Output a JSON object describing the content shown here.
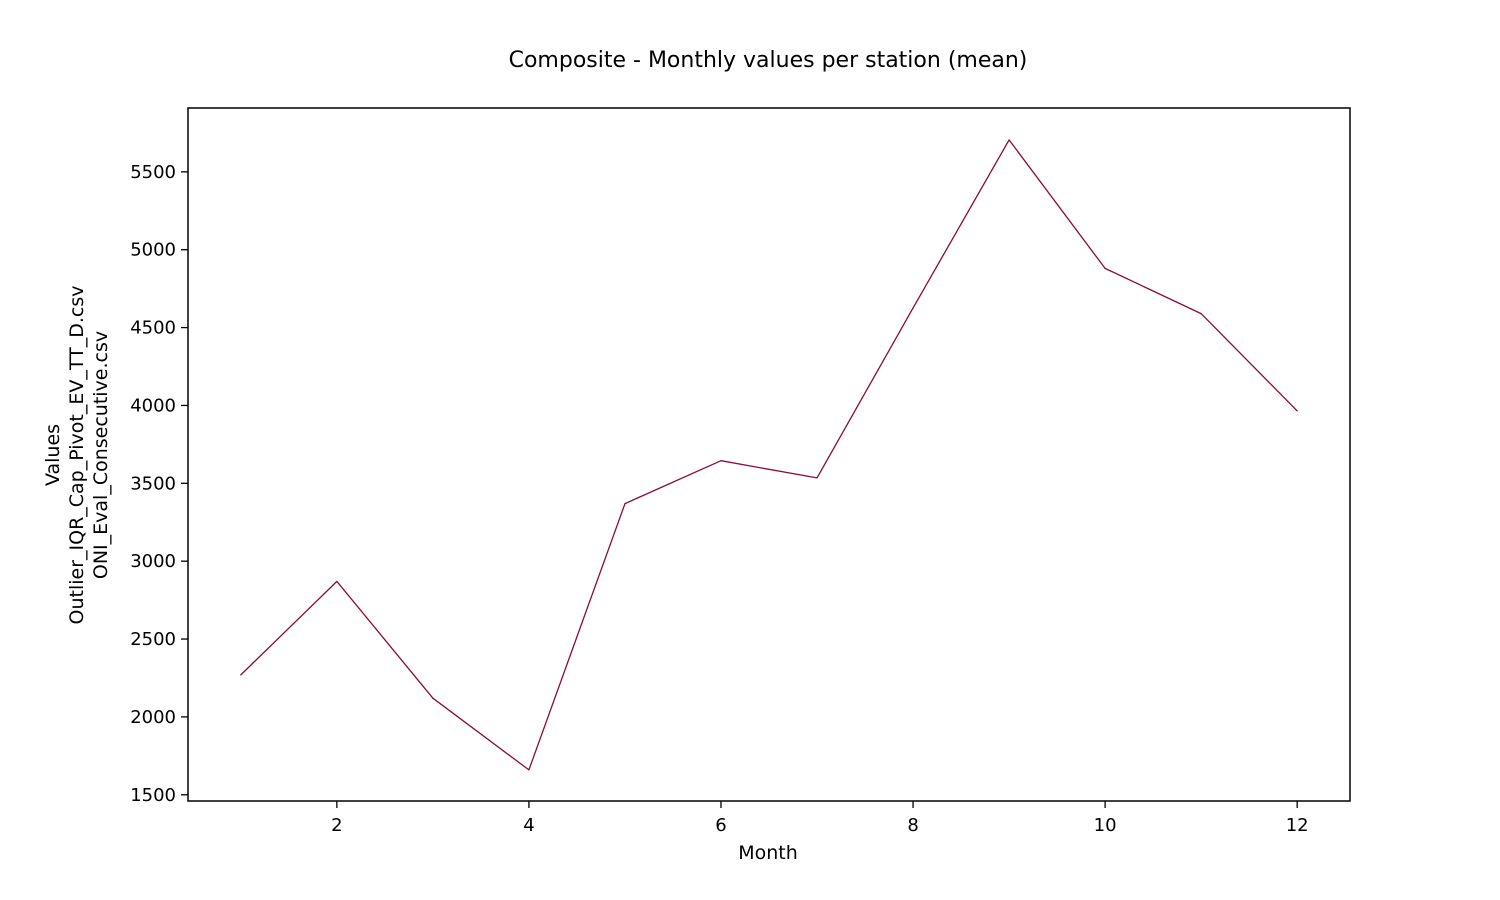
{
  "chart_data": {
    "type": "line",
    "title": "Composite - Monthly values per station (mean)",
    "xlabel": "Month",
    "ylabel_lines": [
      "Values",
      "Outlier_IQR_Cap_Pivot_EV_TT_D.csv",
      "ONI_Eval_Consecutive.csv"
    ],
    "xlim": [
      0.45,
      12.55
    ],
    "ylim": [
      1460,
      5910
    ],
    "xticks": [
      2,
      4,
      6,
      8,
      10,
      12
    ],
    "yticks": [
      1500,
      2000,
      2500,
      3000,
      3500,
      4000,
      4500,
      5000,
      5500
    ],
    "grid": false,
    "series": [
      {
        "color": "#8b0a3f",
        "x": [
          1,
          2,
          3,
          4,
          5,
          6,
          7,
          8,
          9,
          10,
          11,
          12
        ],
        "y": [
          2270,
          2870,
          2120,
          1660,
          3370,
          3645,
          3535,
          4625,
          5705,
          4880,
          4590,
          3965
        ]
      }
    ]
  }
}
